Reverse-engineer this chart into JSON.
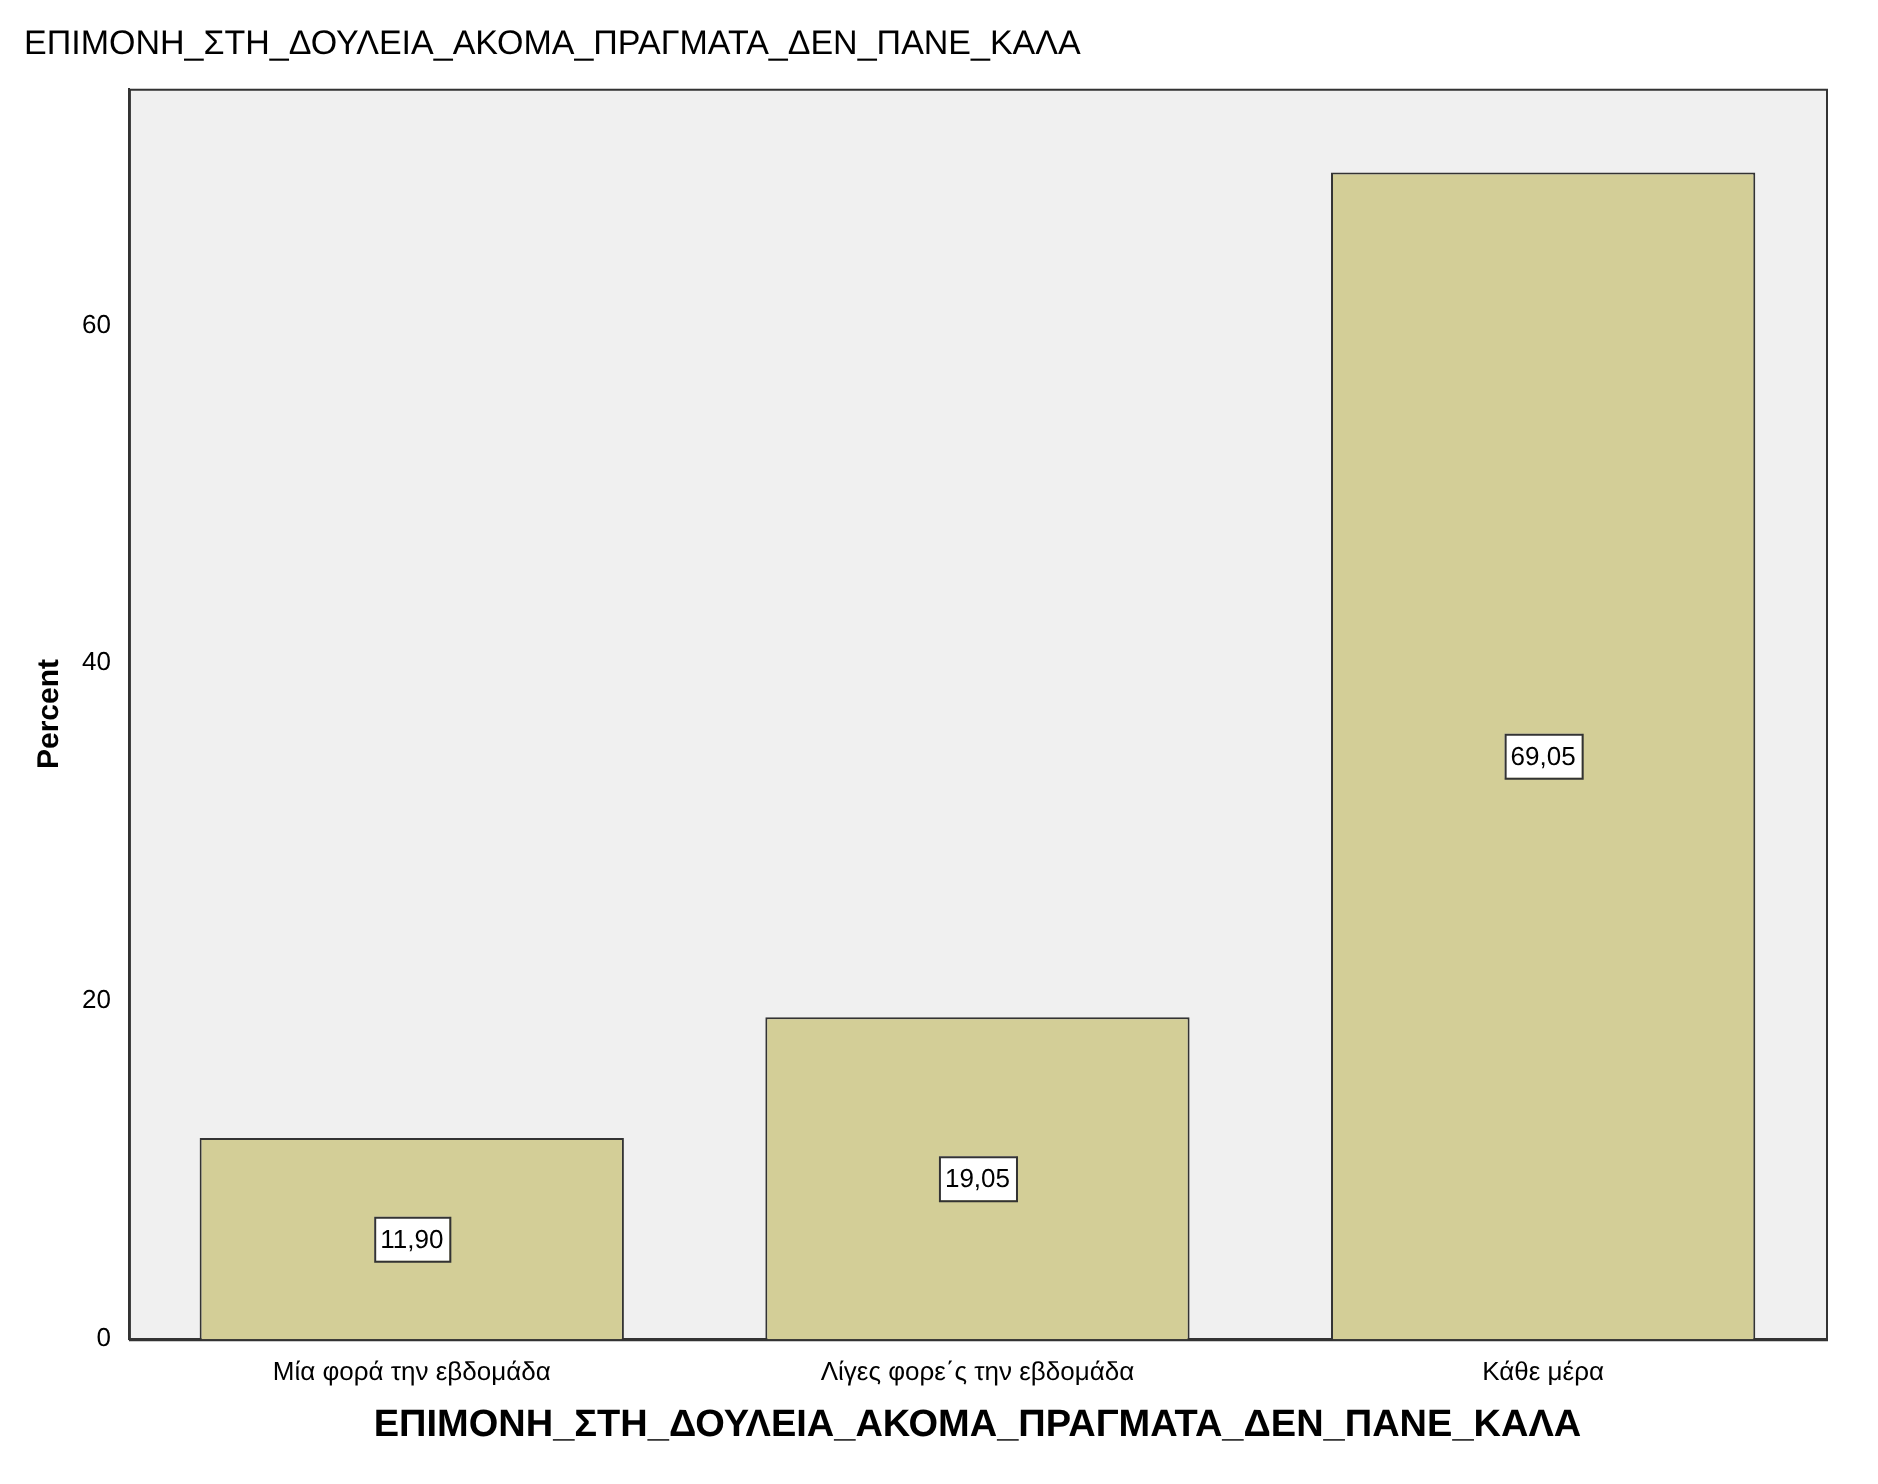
{
  "chart_data": {
    "type": "bar",
    "title": "ΕΠΙΜΟΝΗ_ΣΤΗ_ΔΟΥΛΕΙΑ_ΑΚΟΜΑ_ΠΡΑΓΜΑΤΑ_ΔΕΝ_ΠΑΝΕ_ΚΑΛΑ",
    "xlabel": "ΕΠΙΜΟΝΗ_ΣΤΗ_ΔΟΥΛΕΙΑ_ΑΚΟΜΑ_ΠΡΑΓΜΑΤΑ_ΔΕΝ_ΠΑΝΕ_ΚΑΛΑ",
    "ylabel": "Percent",
    "categories": [
      "Μία φορά την εβδομάδα",
      "Λίγες φορε΄ς την εβδομάδα",
      "Κάθε μέρα"
    ],
    "values": [
      11.9,
      19.05,
      69.05
    ],
    "value_labels": [
      "11,90",
      "19,05",
      "69,05"
    ],
    "color": "#d3ce97",
    "ylim": [
      0,
      74
    ],
    "yticks": [
      0,
      20,
      40,
      60
    ],
    "grid": false,
    "legend": false
  }
}
